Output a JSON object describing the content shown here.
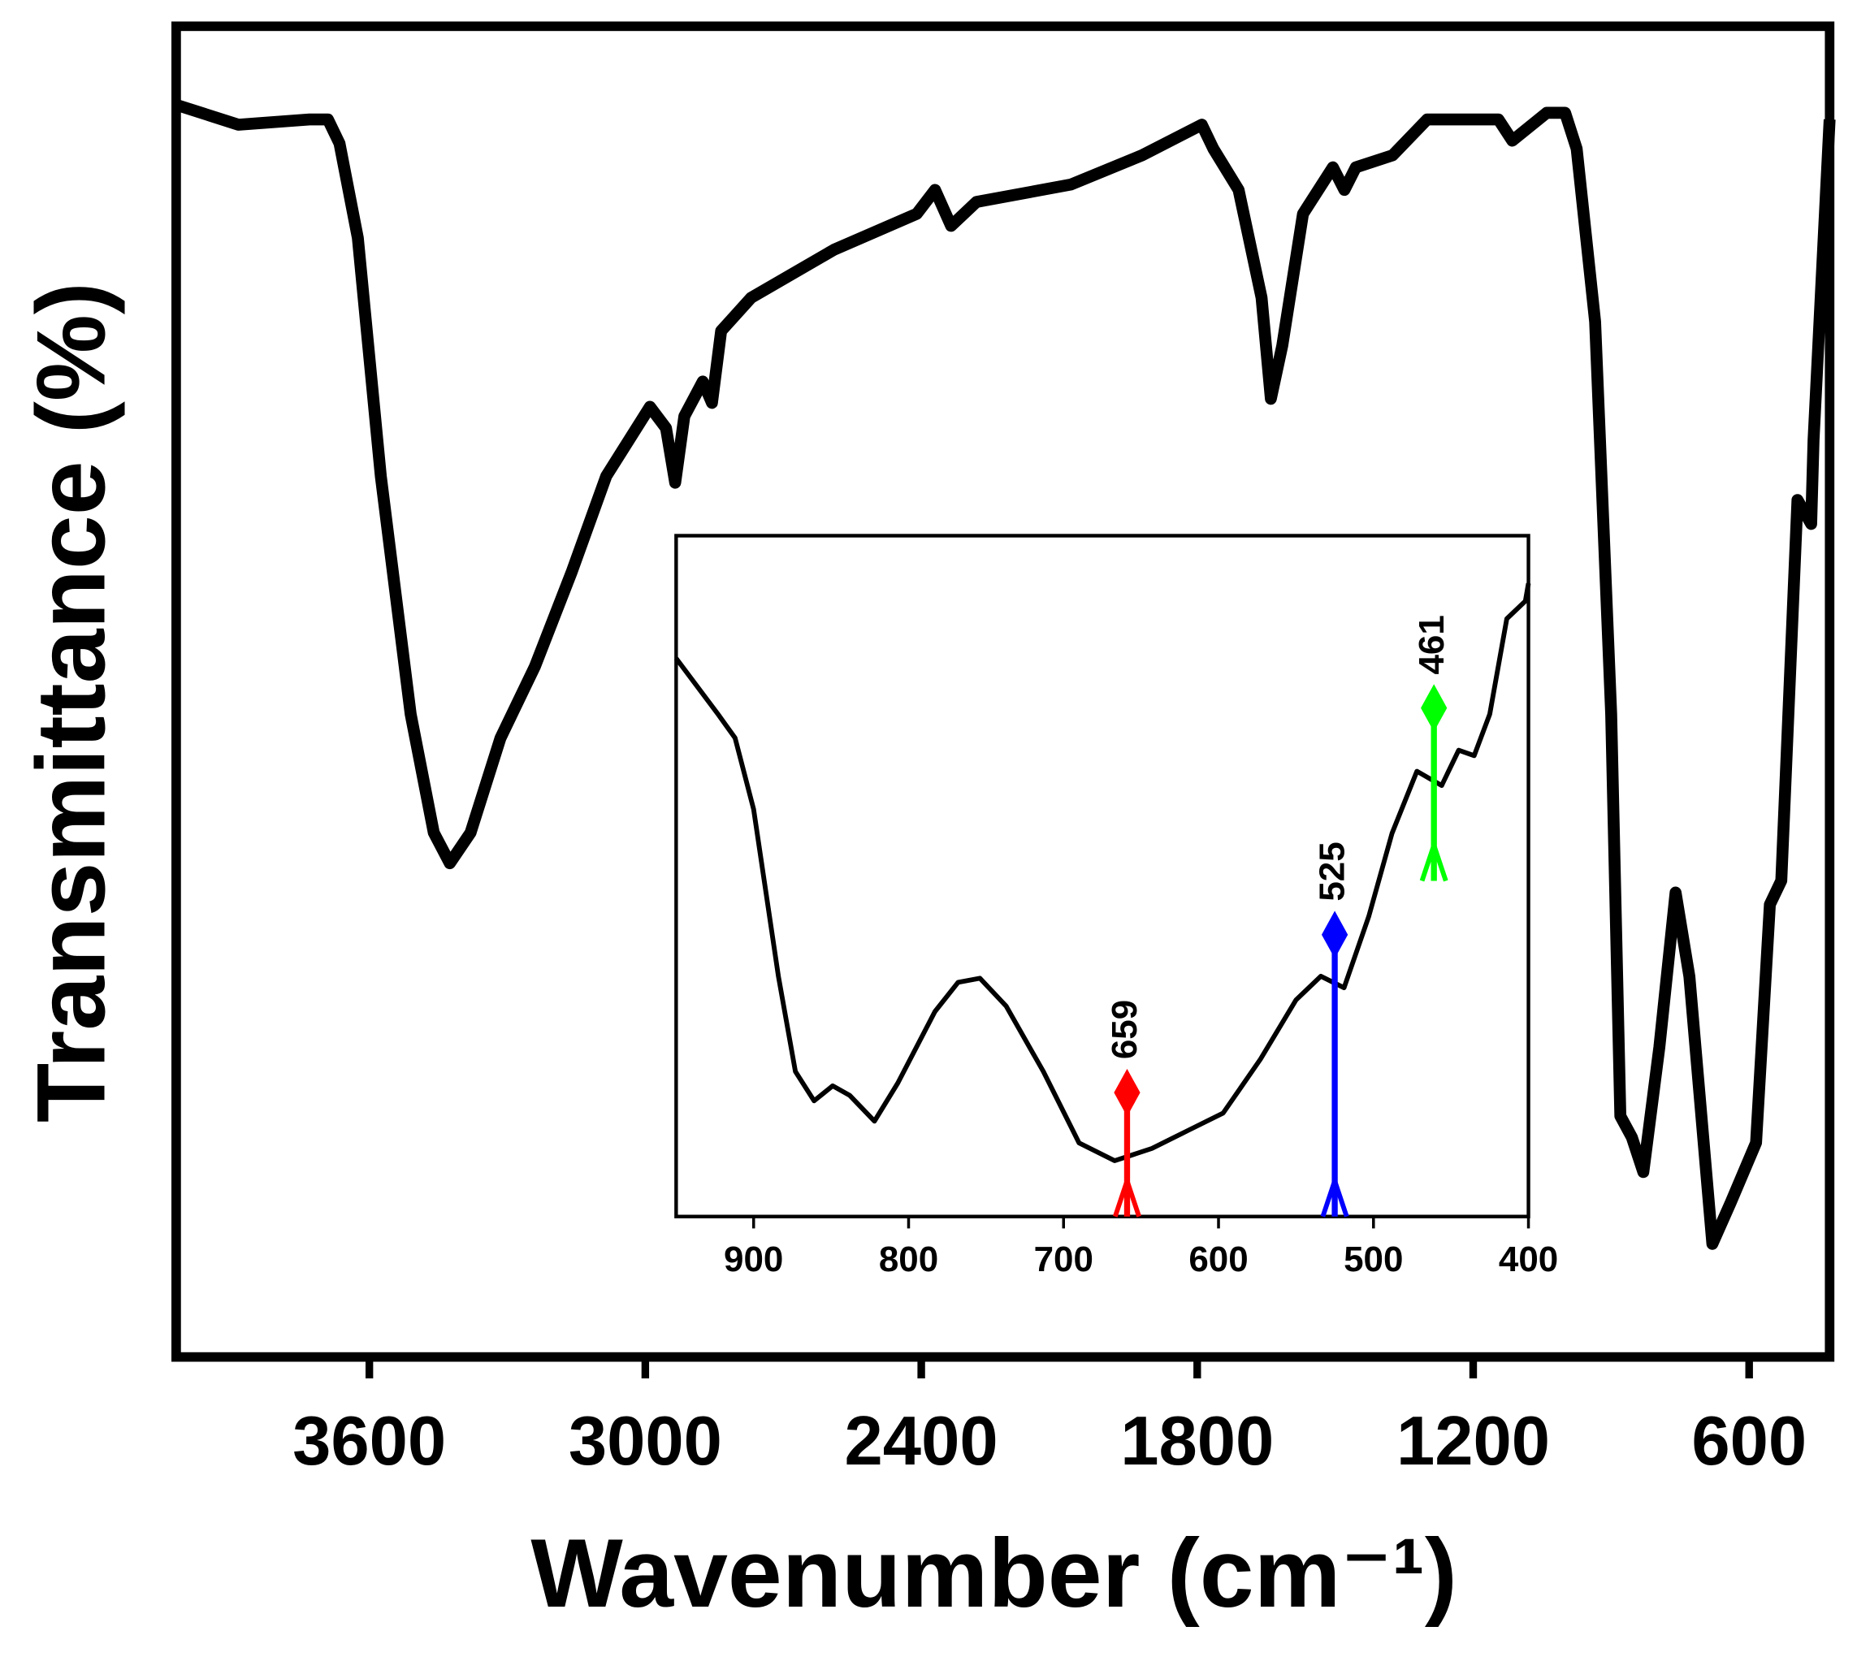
{
  "chart_data": [
    {
      "type": "line",
      "xlabel": "Wavenumber (cm⁻¹)",
      "ylabel": "Transmittance (%)",
      "xlim": [
        4020,
        425
      ],
      "ylim": [
        0,
        100
      ],
      "xticks": [
        3600,
        3000,
        2400,
        1800,
        1200,
        600
      ],
      "series": [
        {
          "color": "#000000",
          "x": [
            4020,
            3885,
            3730,
            3690,
            3665,
            3625,
            3575,
            3510,
            3460,
            3425,
            3380,
            3315,
            3240,
            3160,
            3085,
            2990,
            2955,
            2935,
            2915,
            2875,
            2855,
            2835,
            2770,
            2590,
            2410,
            2370,
            2335,
            2280,
            2075,
            1920,
            1790,
            1765,
            1710,
            1660,
            1640,
            1615,
            1570,
            1505,
            1480,
            1455,
            1375,
            1300,
            1145,
            1115,
            1040,
            1000,
            975,
            935,
            900,
            880,
            855,
            830,
            795,
            760,
            730,
            680,
            640,
            585,
            555,
            530,
            495,
            465,
            460,
            425
          ],
          "values": [
            94.1,
            92.6,
            93.0,
            93.0,
            91.2,
            84.1,
            66.2,
            48.3,
            39.4,
            37.1,
            39.4,
            46.5,
            51.9,
            59.0,
            66.2,
            71.4,
            69.8,
            65.7,
            70.7,
            73.3,
            71.7,
            77.1,
            79.6,
            83.2,
            85.9,
            87.7,
            85.0,
            86.8,
            88.1,
            90.3,
            92.6,
            90.8,
            87.7,
            79.6,
            72.0,
            76.0,
            85.9,
            89.4,
            87.7,
            89.4,
            90.3,
            93.0,
            93.0,
            91.4,
            93.5,
            93.5,
            90.8,
            77.8,
            48.3,
            18.1,
            16.5,
            13.9,
            23.3,
            34.9,
            28.6,
            8.5,
            11.6,
            16.1,
            34.0,
            35.8,
            64.4,
            62.6,
            68.9,
            93.0
          ]
        }
      ]
    },
    {
      "type": "line",
      "xlim": [
        950,
        400
      ],
      "ylim": [
        0,
        100
      ],
      "xticks": [
        900,
        800,
        700,
        600,
        500,
        400
      ],
      "series": [
        {
          "color": "#000000",
          "x": [
            950,
            923,
            912,
            900,
            884,
            873,
            861,
            849,
            838,
            822,
            807,
            783,
            768,
            754,
            737,
            713,
            690,
            667,
            643,
            620,
            597,
            573,
            550,
            534,
            519,
            503,
            488,
            472,
            456,
            445,
            435,
            425,
            414,
            402,
            400
          ],
          "values": [
            82.0,
            73.8,
            70.3,
            59.8,
            35.3,
            21.3,
            17.0,
            19.2,
            17.8,
            14.0,
            19.6,
            30.1,
            34.4,
            35.0,
            30.9,
            21.3,
            10.8,
            8.2,
            10.0,
            12.6,
            15.2,
            23.1,
            31.8,
            35.3,
            33.6,
            44.1,
            56.3,
            65.4,
            63.3,
            68.5,
            67.7,
            73.8,
            87.8,
            90.4,
            93.0
          ]
        }
      ],
      "markers": [
        {
          "x": 659,
          "top": 18.2,
          "bottom": 0,
          "color": "#ff0000"
        },
        {
          "x": 525,
          "top": 41.4,
          "bottom": 0,
          "color": "#0000ff"
        },
        {
          "x": 461,
          "top": 74.7,
          "bottom": 49.3,
          "color": "#00ff00"
        }
      ]
    }
  ]
}
